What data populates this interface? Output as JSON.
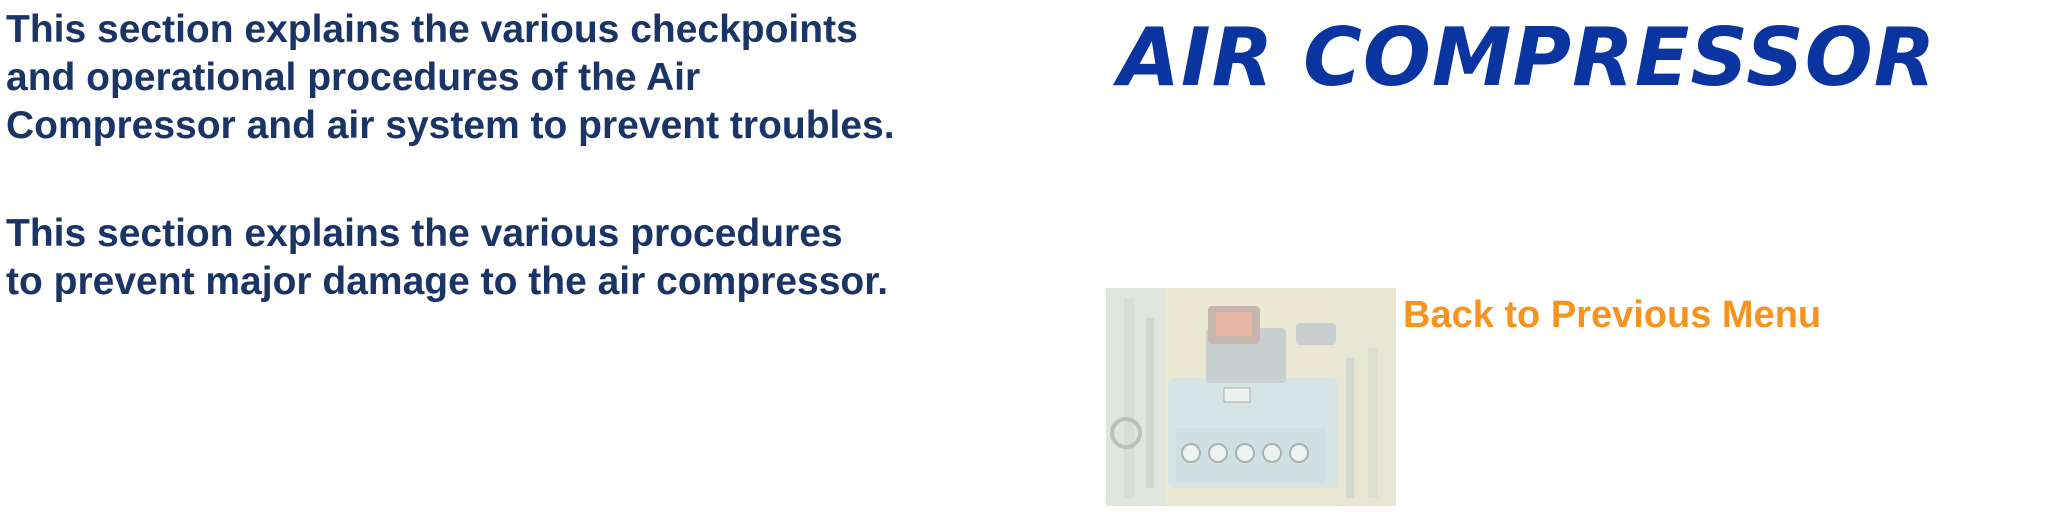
{
  "description": {
    "paragraph_1": "This section explains the various checkpoints\nand operational procedures of the Air\nCompressor and air system to prevent troubles.",
    "paragraph_2": "This section explains the various procedures\nto prevent major damage to the air compressor."
  },
  "header": {
    "title": "AIR COMPRESSOR"
  },
  "navigation": {
    "back_label": "Back to Previous Menu"
  },
  "colors": {
    "body_text": "#1a3466",
    "title": "#0a35a0",
    "link": "#f7941d"
  }
}
